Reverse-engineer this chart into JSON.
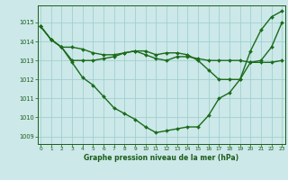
{
  "series": [
    {
      "x": [
        0,
        1,
        2,
        3,
        4,
        5,
        6,
        7,
        8,
        9,
        10,
        11,
        12,
        13,
        14,
        15,
        16,
        17,
        18,
        19,
        20,
        21,
        22,
        23
      ],
      "y": [
        1014.8,
        1014.1,
        1013.7,
        1012.9,
        1012.1,
        1011.7,
        1011.1,
        1010.5,
        1010.2,
        1009.9,
        1009.5,
        1009.2,
        1009.3,
        1009.4,
        1009.5,
        1009.5,
        1010.1,
        1011.0,
        1011.3,
        1012.0,
        1013.5,
        1014.6,
        1015.3,
        1015.6
      ],
      "color": "#1a6b1a",
      "linewidth": 1.0,
      "marker": "D",
      "markersize": 2.0
    },
    {
      "x": [
        0,
        1,
        2,
        3,
        4,
        5,
        6,
        7,
        8,
        9,
        10,
        11,
        12,
        13,
        14,
        15,
        16,
        17,
        18,
        19,
        20,
        21,
        22,
        23
      ],
      "y": [
        1014.8,
        1014.1,
        1013.7,
        1013.7,
        1013.6,
        1013.4,
        1013.3,
        1013.3,
        1013.4,
        1013.5,
        1013.3,
        1013.1,
        1013.0,
        1013.2,
        1013.2,
        1013.1,
        1013.0,
        1013.0,
        1013.0,
        1013.0,
        1012.9,
        1012.9,
        1012.9,
        1013.0
      ],
      "color": "#1a6b1a",
      "linewidth": 1.0,
      "marker": "D",
      "markersize": 2.0
    },
    {
      "x": [
        0,
        1,
        2,
        3,
        4,
        5,
        6,
        7,
        8,
        9,
        10,
        11,
        12,
        13,
        14,
        15,
        16,
        17,
        18,
        19,
        20,
        21,
        22,
        23
      ],
      "y": [
        1014.8,
        1014.1,
        1013.7,
        1013.0,
        1013.0,
        1013.0,
        1013.1,
        1013.2,
        1013.4,
        1013.5,
        1013.5,
        1013.3,
        1013.4,
        1013.4,
        1013.3,
        1013.0,
        1012.5,
        1012.0,
        1012.0,
        1012.0,
        1012.9,
        1013.0,
        1013.7,
        1015.0
      ],
      "color": "#1a6b1a",
      "linewidth": 1.0,
      "marker": "D",
      "markersize": 2.0
    }
  ],
  "xlim": [
    -0.3,
    23.3
  ],
  "ylim": [
    1008.6,
    1015.9
  ],
  "yticks": [
    1009,
    1010,
    1011,
    1012,
    1013,
    1014,
    1015
  ],
  "xticks": [
    0,
    1,
    2,
    3,
    4,
    5,
    6,
    7,
    8,
    9,
    10,
    11,
    12,
    13,
    14,
    15,
    16,
    17,
    18,
    19,
    20,
    21,
    22,
    23
  ],
  "xlabel": "Graphe pression niveau de la mer (hPa)",
  "bg_color": "#cce8e8",
  "grid_color": "#99cccc",
  "tick_color": "#1a5c1a",
  "label_color": "#1a5c1a",
  "axis_color": "#1a5c1a"
}
